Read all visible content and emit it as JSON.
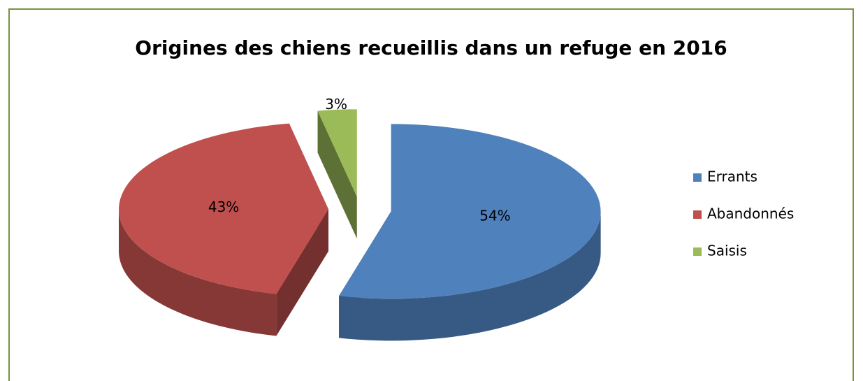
{
  "chart_data": {
    "type": "pie",
    "title": "Origines des chiens recueillis dans un refuge en 2016",
    "categories": [
      "Errants",
      "Abandonnés",
      "Saisis"
    ],
    "values": [
      54,
      43,
      3
    ],
    "value_labels": [
      "54%",
      "43%",
      "3%"
    ],
    "colors": [
      "#4f81bd",
      "#c0504d",
      "#9bbb59"
    ],
    "legend": "right",
    "three_d": true,
    "exploded": true
  }
}
